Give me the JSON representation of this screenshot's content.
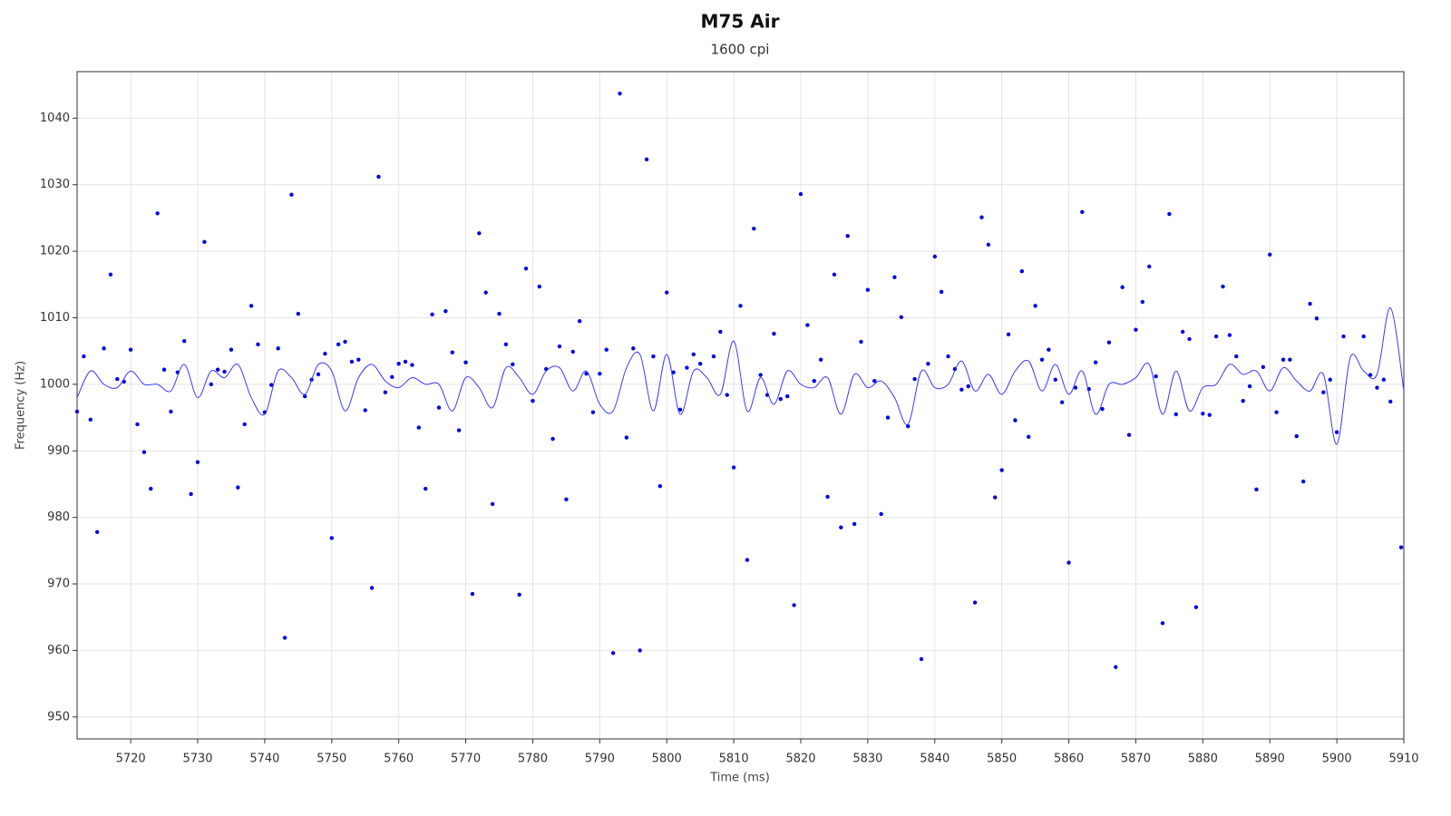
{
  "chart_data": {
    "type": "scatter",
    "title": "M75 Air",
    "subtitle": "1600 cpi",
    "x_label": "Time (ms)",
    "y_label": "Frequency (Hz)",
    "xlim": [
      5712,
      5910
    ],
    "ylim": [
      946.7,
      1047
    ],
    "xticks": [
      5720,
      5730,
      5740,
      5750,
      5760,
      5770,
      5780,
      5790,
      5800,
      5810,
      5820,
      5830,
      5840,
      5850,
      5860,
      5870,
      5880,
      5890,
      5900,
      5910
    ],
    "yticks": [
      950,
      960,
      970,
      980,
      990,
      1000,
      1010,
      1020,
      1030,
      1040
    ],
    "grid": true,
    "series": [
      {
        "type": "scatter",
        "color": "#0000e6",
        "x": [
          5712,
          5713,
          5714,
          5715,
          5716,
          5717,
          5718,
          5719,
          5720,
          5721,
          5722,
          5723,
          5724,
          5725,
          5726,
          5727,
          5728,
          5729,
          5730,
          5731,
          5732,
          5733,
          5734,
          5735,
          5736,
          5737,
          5738,
          5739,
          5740,
          5741,
          5742,
          5743,
          5744,
          5745,
          5746,
          5747,
          5748,
          5749,
          5750,
          5751,
          5752,
          5753,
          5754,
          5755,
          5756,
          5757,
          5758,
          5759,
          5760,
          5761,
          5762,
          5763,
          5764,
          5765,
          5766,
          5767,
          5768,
          5769,
          5770,
          5771,
          5772,
          5773,
          5774,
          5775,
          5776,
          5777,
          5778,
          5779,
          5780,
          5781,
          5782,
          5783,
          5784,
          5785,
          5786,
          5787,
          5788,
          5789,
          5790,
          5791,
          5792,
          5793,
          5794,
          5795,
          5796,
          5797,
          5798,
          5799,
          5800,
          5801,
          5802,
          5803,
          5804,
          5805,
          5807,
          5808,
          5809,
          5810,
          5811,
          5812,
          5813,
          5814,
          5815,
          5816,
          5817,
          5818,
          5819,
          5820,
          5821,
          5822,
          5823,
          5824,
          5825,
          5826,
          5827,
          5828,
          5829,
          5830,
          5831,
          5832,
          5833,
          5834,
          5835,
          5836,
          5837,
          5838,
          5839,
          5840,
          5841,
          5842,
          5843,
          5844,
          5845,
          5846,
          5847,
          5848,
          5849,
          5850,
          5851,
          5852,
          5853,
          5854,
          5855,
          5856,
          5857,
          5858,
          5859,
          5860,
          5861,
          5862,
          5863,
          5864,
          5865,
          5866,
          5867,
          5868,
          5869,
          5870,
          5871,
          5872,
          5873,
          5874,
          5875,
          5876,
          5877,
          5878,
          5879,
          5880,
          5881,
          5882,
          5883,
          5884,
          5885,
          5886,
          5887,
          5888,
          5889,
          5890,
          5891,
          5892,
          5893,
          5894,
          5895,
          5896,
          5897,
          5898,
          5899,
          5900,
          5901,
          5904,
          5905,
          5906,
          5907,
          5908,
          5909.6
        ],
        "values": [
          995.9,
          1004.2,
          994.7,
          977.8,
          1005.4,
          1016.5,
          1000.8,
          1000.4,
          1005.2,
          994.0,
          989.8,
          984.3,
          1025.7,
          1002.2,
          995.9,
          1001.8,
          1006.5,
          983.5,
          988.3,
          1021.4,
          1000.0,
          1002.2,
          1001.9,
          1005.2,
          984.5,
          994.0,
          1011.8,
          1006.0,
          995.8,
          999.9,
          1005.4,
          961.9,
          1028.5,
          1010.6,
          998.2,
          1000.7,
          1001.5,
          1004.6,
          976.9,
          1006.0,
          1006.4,
          1003.4,
          1003.7,
          996.1,
          969.4,
          1031.2,
          998.8,
          1001.1,
          1003.1,
          1003.4,
          1002.9,
          993.5,
          984.3,
          1010.5,
          996.5,
          1011.0,
          1004.8,
          993.1,
          1003.3,
          968.5,
          1022.7,
          1013.8,
          982.0,
          1010.6,
          1006.0,
          1003.0,
          968.4,
          1017.4,
          997.5,
          1014.7,
          1002.3,
          991.8,
          1005.7,
          982.7,
          1004.9,
          1009.5,
          1001.6,
          995.8,
          1001.6,
          1005.2,
          959.6,
          1043.7,
          992.0,
          1005.4,
          960.0,
          1033.8,
          1004.2,
          984.7,
          1013.8,
          1001.8,
          996.2,
          1002.5,
          1004.5,
          1003.1,
          1004.2,
          1007.9,
          998.4,
          987.5,
          1011.8,
          973.6,
          1023.4,
          1001.4,
          998.4,
          1007.6,
          997.8,
          998.2,
          966.8,
          1028.6,
          1008.9,
          1000.5,
          1003.7,
          983.1,
          1016.5,
          978.5,
          1022.3,
          979.0,
          1006.4,
          1014.2,
          1000.5,
          980.5,
          995.0,
          1016.1,
          1010.1,
          993.7,
          1000.8,
          958.7,
          1003.1,
          1019.2,
          1013.9,
          1004.2,
          1002.3,
          999.2,
          999.7,
          967.2,
          1025.1,
          1021.0,
          983.0,
          987.1,
          1007.5,
          994.6,
          1017.0,
          992.1,
          1011.8,
          1003.7,
          1005.2,
          1000.7,
          997.3,
          973.2,
          999.5,
          1025.9,
          999.3,
          1003.3,
          996.3,
          1006.3,
          957.5,
          1014.6,
          992.4,
          1008.2,
          1012.4,
          1017.7,
          1001.2,
          964.1,
          1025.6,
          995.5,
          1007.9,
          1006.8,
          966.5,
          995.6,
          995.4,
          1007.2,
          1014.7,
          1007.4,
          1004.2,
          997.5,
          999.7,
          984.2,
          1002.6,
          1019.5,
          995.8,
          1003.7,
          1003.7,
          992.2,
          985.4,
          1012.1,
          1009.9,
          998.8,
          1000.7,
          992.8,
          1007.2,
          1007.2,
          1001.4,
          999.5,
          1000.7,
          997.4,
          975.5
        ]
      },
      {
        "type": "line",
        "color": "#3a3aff",
        "x": [
          5712,
          5714,
          5716,
          5718,
          5720,
          5722,
          5724,
          5726,
          5728,
          5730,
          5732,
          5734,
          5736,
          5738,
          5740,
          5742,
          5744,
          5746,
          5748,
          5750,
          5752,
          5754,
          5756,
          5758,
          5760,
          5762,
          5764,
          5766,
          5768,
          5770,
          5772,
          5774,
          5776,
          5778,
          5780,
          5782,
          5784,
          5786,
          5788,
          5790,
          5792,
          5794,
          5796,
          5798,
          5800,
          5802,
          5804,
          5806,
          5808,
          5810,
          5812,
          5814,
          5816,
          5818,
          5820,
          5822,
          5824,
          5826,
          5828,
          5830,
          5832,
          5834,
          5836,
          5838,
          5840,
          5842,
          5844,
          5846,
          5848,
          5850,
          5852,
          5854,
          5856,
          5858,
          5860,
          5862,
          5864,
          5866,
          5868,
          5870,
          5872,
          5874,
          5876,
          5878,
          5880,
          5882,
          5884,
          5886,
          5888,
          5890,
          5892,
          5894,
          5896,
          5898,
          5900,
          5902,
          5904,
          5906,
          5908,
          5910
        ],
        "values": [
          998,
          1002,
          1000,
          999.5,
          1002,
          1000,
          1000,
          999,
          1003,
          998,
          1002,
          1001,
          1003,
          998,
          995.5,
          1002,
          1001,
          998.5,
          1003,
          1002,
          996,
          1001,
          1003,
          1000.5,
          999.5,
          1001,
          1000,
          1000,
          996,
          1001,
          999.5,
          996.5,
          1002.5,
          1001,
          998.5,
          1002,
          1002.5,
          999,
          1002,
          997,
          996,
          1002.5,
          1004.5,
          996,
          1004.5,
          995.5,
          1002,
          1001,
          998.5,
          1006.5,
          996,
          1001,
          997,
          1002,
          1000,
          999.5,
          1001,
          995.5,
          1001.5,
          999.5,
          1000.5,
          998,
          994,
          1002,
          999.5,
          1000,
          1003.5,
          999,
          1001.5,
          998.5,
          1002,
          1003.5,
          999,
          1003,
          998.5,
          1002,
          995.5,
          1000,
          1000,
          1001,
          1003,
          995.5,
          1002,
          996,
          999.5,
          1000,
          1003,
          1001.5,
          1002,
          999,
          1002.5,
          1000.5,
          999,
          1001.5,
          991,
          1004,
          1002,
          1001.5,
          1011.5,
          999
        ]
      }
    ]
  }
}
